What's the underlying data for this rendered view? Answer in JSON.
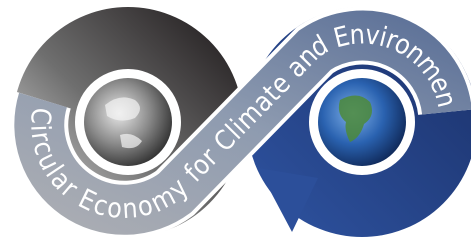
{
  "logo": {
    "text": "Circular Economy for Climate and Environment"
  }
}
